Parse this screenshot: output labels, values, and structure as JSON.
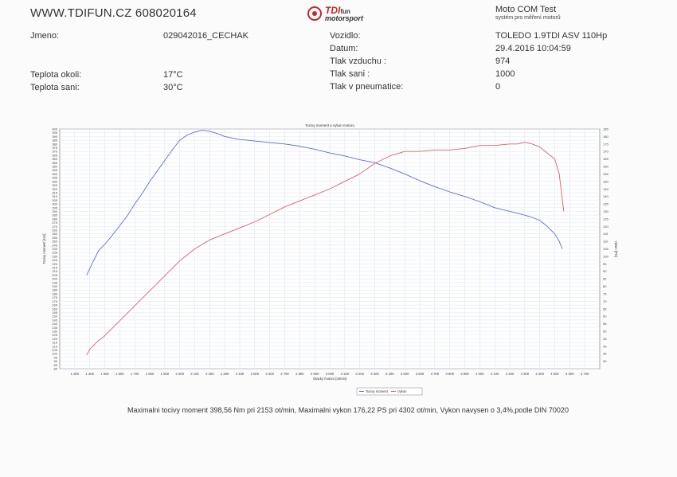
{
  "header": {
    "site": "WWW.TDIFUN.CZ 608020164",
    "logo": {
      "brand": "TDI",
      "brand_suffix": "fun",
      "sub": "motorsport"
    },
    "software": "Moto COM Test",
    "software_sub": "systém pro měření motorů"
  },
  "info": {
    "jmeno_label": "Jmeno:",
    "jmeno_value": "029042016_CECHAK",
    "teplota_okoli_label": "Teplota okoli:",
    "teplota_okoli_value": "17°C",
    "teplota_sani_label": "Teplota sani:",
    "teplota_sani_value": "30°C",
    "vozidlo_label": "Vozidlo:",
    "vozidlo_value": "TOLEDO 1.9TDI ASV 110Hp",
    "datum_label": "Datum:",
    "datum_value": "29.4.2016 10:04:59",
    "tlak_vzduchu_label": "Tlak vzduchu :",
    "tlak_vzduchu_value": "974",
    "tlak_sani_label": "Tlak sani :",
    "tlak_sani_value": "1000",
    "tlak_pneu_label": "Tlak v pneumatice:",
    "tlak_pneu_value": "0"
  },
  "footer": "Maximalni tocivy moment 398,56 Nm pri 2153 ot/min,  Maximalni vykon 176,22 PS pri 4302 ot/min,  Vykon navysen o 3,4%,podle DIN 70020",
  "chart_data": {
    "type": "line",
    "title": "Tocivy moment a vykon motoru",
    "xlabel": "Otacky motoru [ot/min]",
    "ylabel_left": "Tocivy moment [Nm]",
    "ylabel_right": "Vykon [PS]",
    "xlim": [
      1200,
      4800
    ],
    "ylim_left": [
      80,
      400
    ],
    "ylim_right": [
      25,
      185
    ],
    "grid": true,
    "legend_position": "bottom-center",
    "x_ticks": [
      1300,
      1400,
      1500,
      1600,
      1700,
      1800,
      1900,
      2000,
      2100,
      2200,
      2300,
      2400,
      2500,
      2600,
      2700,
      2800,
      2900,
      3000,
      3100,
      3200,
      3300,
      3400,
      3500,
      3600,
      3700,
      3800,
      3900,
      4000,
      4100,
      4200,
      4300,
      4400,
      4500,
      4600,
      4700
    ],
    "x_tick_labels": [
      "1 300",
      "1 400",
      "1 500",
      "1 600",
      "1 700",
      "1 800",
      "1 900",
      "2 000",
      "2 100",
      "2 200",
      "2 300",
      "2 400",
      "2 500",
      "2 600",
      "2 700",
      "2 800",
      "2 900",
      "3 000",
      "3 100",
      "3 200",
      "3 300",
      "3 400",
      "3 500",
      "3 600",
      "3 700",
      "3 800",
      "3 900",
      "4 000",
      "4 100",
      "4 200",
      "4 300",
      "4 400",
      "4 500",
      "4 600",
      "4 700"
    ],
    "y_left_ticks": [
      80,
      85,
      90,
      95,
      100,
      105,
      110,
      115,
      120,
      125,
      130,
      135,
      140,
      145,
      150,
      155,
      160,
      165,
      170,
      175,
      180,
      185,
      190,
      195,
      200,
      205,
      210,
      215,
      220,
      225,
      230,
      235,
      240,
      245,
      250,
      255,
      260,
      265,
      270,
      275,
      280,
      285,
      290,
      295,
      300,
      305,
      310,
      315,
      320,
      325,
      330,
      335,
      340,
      345,
      350,
      355,
      360,
      365,
      370,
      375,
      380,
      385,
      390,
      395,
      400
    ],
    "y_right_ticks": [
      30,
      35,
      40,
      45,
      50,
      55,
      60,
      65,
      70,
      75,
      80,
      85,
      90,
      95,
      100,
      105,
      110,
      115,
      120,
      125,
      130,
      135,
      140,
      145,
      150,
      155,
      160,
      165,
      170,
      175,
      180,
      185
    ],
    "series": [
      {
        "name": "Tocivy moment",
        "axis": "left",
        "color": "#5a6fd6",
        "x": [
          1380,
          1420,
          1460,
          1500,
          1550,
          1600,
          1650,
          1700,
          1750,
          1800,
          1850,
          1900,
          1950,
          2000,
          2050,
          2100,
          2153,
          2200,
          2250,
          2300,
          2350,
          2400,
          2500,
          2600,
          2700,
          2800,
          2900,
          3000,
          3100,
          3200,
          3300,
          3400,
          3500,
          3600,
          3700,
          3800,
          3900,
          4000,
          4100,
          4200,
          4300,
          4350,
          4400,
          4450,
          4500,
          4530,
          4550
        ],
        "y": [
          205,
          222,
          238,
          246,
          258,
          271,
          284,
          300,
          314,
          330,
          344,
          358,
          372,
          385,
          392,
          396,
          398.5,
          397,
          394,
          390,
          388,
          386,
          384,
          382,
          380,
          377,
          373,
          368,
          364,
          359,
          355,
          348,
          340,
          331,
          323,
          316,
          310,
          303,
          295,
          290,
          285,
          282,
          278,
          270,
          260,
          250,
          240
        ]
      },
      {
        "name": "Vykon",
        "axis": "right",
        "color": "#e06060",
        "x": [
          1380,
          1400,
          1450,
          1500,
          1550,
          1600,
          1650,
          1700,
          1750,
          1800,
          1850,
          1900,
          1950,
          2000,
          2050,
          2100,
          2150,
          2200,
          2300,
          2400,
          2500,
          2600,
          2700,
          2800,
          2900,
          3000,
          3100,
          3200,
          3300,
          3400,
          3500,
          3600,
          3700,
          3800,
          3900,
          4000,
          4100,
          4200,
          4250,
          4302,
          4350,
          4400,
          4450,
          4500,
          4530,
          4560
        ],
        "y": [
          34,
          38,
          43,
          47,
          52,
          57,
          62,
          67,
          72,
          77,
          82,
          87,
          92,
          97,
          101,
          105,
          108,
          111,
          115,
          119,
          123,
          128,
          133,
          137,
          141,
          145,
          150,
          155,
          162,
          167,
          170,
          170,
          171,
          171,
          172,
          174,
          174,
          175,
          175,
          176.2,
          175,
          173,
          169,
          165,
          155,
          130
        ]
      }
    ]
  }
}
